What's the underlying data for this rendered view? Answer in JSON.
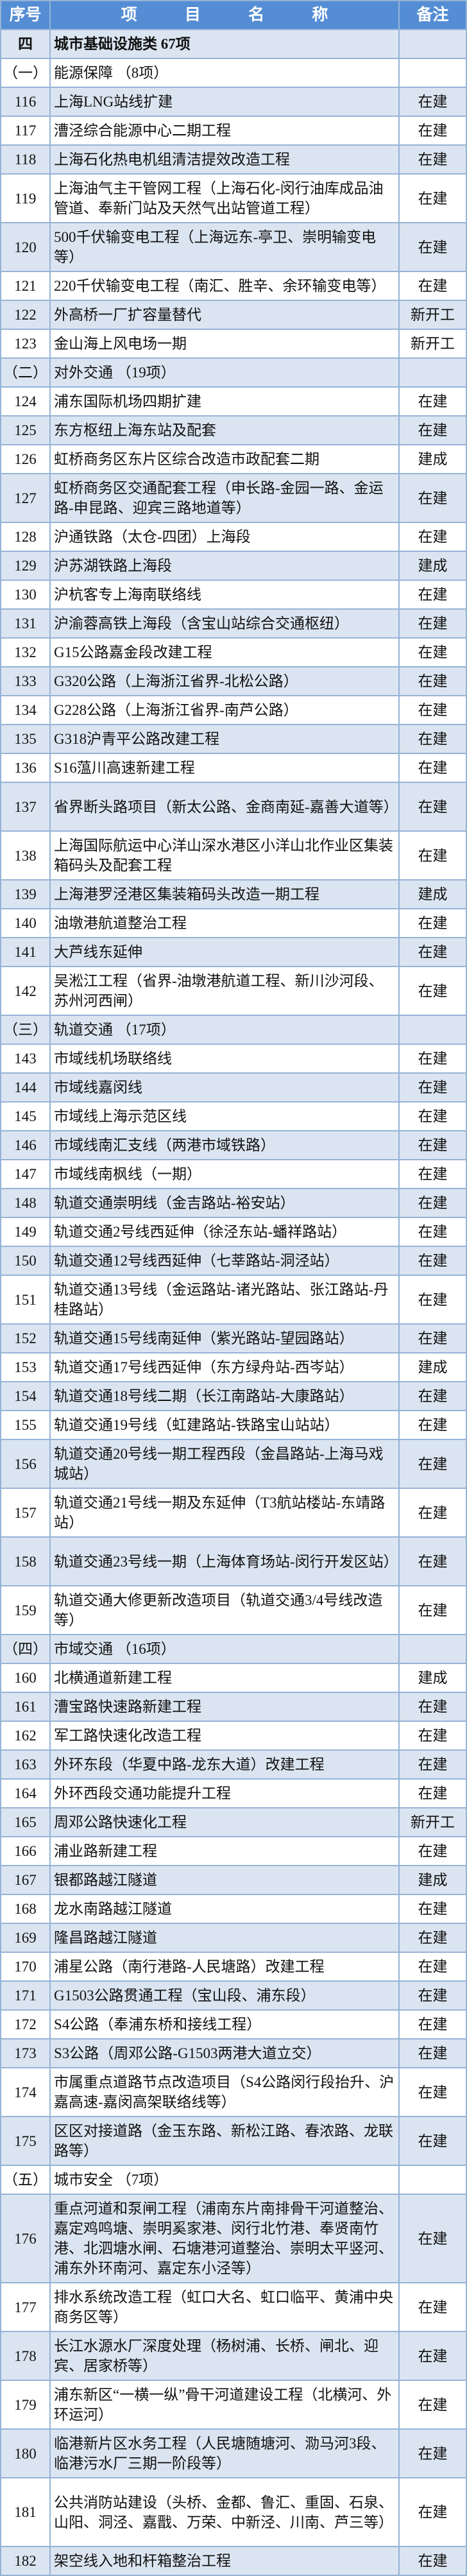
{
  "header": {
    "num": "序号",
    "name": "项 目 名 称",
    "note": "备注"
  },
  "colors": {
    "header_bg": "#548dd4",
    "row_light": "#dbe5f1",
    "border": "#95b3d7"
  },
  "rows": [
    {
      "type": "category",
      "num": "四",
      "name": "城市基础设施类  67项",
      "note": ""
    },
    {
      "type": "section",
      "num": "（一）",
      "name": "能源保障 （8项）",
      "note": ""
    },
    {
      "type": "item",
      "num": "116",
      "name": "上海LNG站线扩建",
      "note": "在建"
    },
    {
      "type": "item",
      "num": "117",
      "name": "漕泾综合能源中心二期工程",
      "note": "在建"
    },
    {
      "type": "item",
      "num": "118",
      "name": "上海石化热电机组清洁提效改造工程",
      "note": "在建"
    },
    {
      "type": "item",
      "num": "119",
      "name": "上海油气主干管网工程（上海石化-闵行油库成品油管道、奉新门站及天然气出站管道工程）",
      "note": "在建",
      "lines": 2
    },
    {
      "type": "item",
      "num": "120",
      "name": "500千伏输变电工程（上海远东-亭卫、崇明输变电等）",
      "note": "在建",
      "lines": 2
    },
    {
      "type": "item",
      "num": "121",
      "name": "220千伏输变电工程（南汇、胜辛、余环输变电等）",
      "note": "在建"
    },
    {
      "type": "item",
      "num": "122",
      "name": "外高桥一厂扩容量替代",
      "note": "新开工"
    },
    {
      "type": "item",
      "num": "123",
      "name": "金山海上风电场一期",
      "note": "新开工"
    },
    {
      "type": "section",
      "num": "（二）",
      "name": "对外交通 （19项）",
      "note": ""
    },
    {
      "type": "item",
      "num": "124",
      "name": "浦东国际机场四期扩建",
      "note": "在建"
    },
    {
      "type": "item",
      "num": "125",
      "name": "东方枢纽上海东站及配套",
      "note": "在建"
    },
    {
      "type": "item",
      "num": "126",
      "name": "虹桥商务区东片区综合改造市政配套二期",
      "note": "建成"
    },
    {
      "type": "item",
      "num": "127",
      "name": "虹桥商务区交通配套工程（申长路-金园一路、金运路-申昆路、迎宾三路地道等）",
      "note": "在建",
      "lines": 2
    },
    {
      "type": "item",
      "num": "128",
      "name": "沪通铁路（太仓-四团）上海段",
      "note": "在建"
    },
    {
      "type": "item",
      "num": "129",
      "name": "沪苏湖铁路上海段",
      "note": "建成"
    },
    {
      "type": "item",
      "num": "130",
      "name": "沪杭客专上海南联络线",
      "note": "在建"
    },
    {
      "type": "item",
      "num": "131",
      "name": "沪渝蓉高铁上海段（含宝山站综合交通枢纽）",
      "note": "在建"
    },
    {
      "type": "item",
      "num": "132",
      "name": "G15公路嘉金段改建工程",
      "note": "在建"
    },
    {
      "type": "item",
      "num": "133",
      "name": "G320公路（上海浙江省界-北松公路）",
      "note": "在建"
    },
    {
      "type": "item",
      "num": "134",
      "name": "G228公路（上海浙江省界-南芦公路）",
      "note": "在建"
    },
    {
      "type": "item",
      "num": "135",
      "name": "G318沪青平公路改建工程",
      "note": "在建"
    },
    {
      "type": "item",
      "num": "136",
      "name": "S16蕰川高速新建工程",
      "note": "在建"
    },
    {
      "type": "item",
      "num": "137",
      "name": "省界断头路项目（新太公路、金商南延-嘉善大道等）",
      "note": "在建",
      "lines": 2
    },
    {
      "type": "item",
      "num": "138",
      "name": "上海国际航运中心洋山深水港区小洋山北作业区集装箱码头及配套工程",
      "note": "在建",
      "lines": 2
    },
    {
      "type": "item",
      "num": "139",
      "name": "上海港罗泾港区集装箱码头改造一期工程",
      "note": "建成"
    },
    {
      "type": "item",
      "num": "140",
      "name": "油墩港航道整治工程",
      "note": "在建"
    },
    {
      "type": "item",
      "num": "141",
      "name": "大芦线东延伸",
      "note": "在建"
    },
    {
      "type": "item",
      "num": "142",
      "name": "吴淞江工程（省界-油墩港航道工程、新川沙河段、苏州河西闸）",
      "note": "在建",
      "lines": 2
    },
    {
      "type": "section",
      "num": "（三）",
      "name": "轨道交通 （17项）",
      "note": ""
    },
    {
      "type": "item",
      "num": "143",
      "name": "市域线机场联络线",
      "note": "在建"
    },
    {
      "type": "item",
      "num": "144",
      "name": "市域线嘉闵线",
      "note": "在建"
    },
    {
      "type": "item",
      "num": "145",
      "name": "市域线上海示范区线",
      "note": "在建"
    },
    {
      "type": "item",
      "num": "146",
      "name": "市域线南汇支线（两港市域铁路）",
      "note": "在建"
    },
    {
      "type": "item",
      "num": "147",
      "name": "市域线南枫线（一期）",
      "note": "在建"
    },
    {
      "type": "item",
      "num": "148",
      "name": "轨道交通崇明线（金吉路站-裕安站）",
      "note": "在建"
    },
    {
      "type": "item",
      "num": "149",
      "name": "轨道交通2号线西延伸（徐泾东站-蟠祥路站）",
      "note": "在建"
    },
    {
      "type": "item",
      "num": "150",
      "name": "轨道交通12号线西延伸（七莘路站-洞泾站）",
      "note": "在建"
    },
    {
      "type": "item",
      "num": "151",
      "name": "轨道交通13号线（金运路站-诸光路站、张江路站-丹桂路站）",
      "note": "在建",
      "lines": 2
    },
    {
      "type": "item",
      "num": "152",
      "name": "轨道交通15号线南延伸（紫光路站-望园路站）",
      "note": "在建"
    },
    {
      "type": "item",
      "num": "153",
      "name": "轨道交通17号线西延伸（东方绿舟站-西岑站）",
      "note": "建成"
    },
    {
      "type": "item",
      "num": "154",
      "name": "轨道交通18号线二期（长江南路站-大康路站）",
      "note": "在建"
    },
    {
      "type": "item",
      "num": "155",
      "name": "轨道交通19号线（虹建路站-铁路宝山站站）",
      "note": "在建"
    },
    {
      "type": "item",
      "num": "156",
      "name": "轨道交通20号线一期工程西段（金昌路站-上海马戏城站）",
      "note": "在建",
      "lines": 2
    },
    {
      "type": "item",
      "num": "157",
      "name": "轨道交通21号线一期及东延伸（T3航站楼站-东靖路站）",
      "note": "在建",
      "lines": 2
    },
    {
      "type": "item",
      "num": "158",
      "name": "轨道交通23号线一期（上海体育场站-闵行开发区站）",
      "note": "在建",
      "lines": 2
    },
    {
      "type": "item",
      "num": "159",
      "name": "轨道交通大修更新改造项目（轨道交通3/4号线改造等）",
      "note": "在建",
      "lines": 2
    },
    {
      "type": "section",
      "num": "（四）",
      "name": "市域交通 （16项）",
      "note": ""
    },
    {
      "type": "item",
      "num": "160",
      "name": "北横通道新建工程",
      "note": "建成"
    },
    {
      "type": "item",
      "num": "161",
      "name": "漕宝路快速路新建工程",
      "note": "在建"
    },
    {
      "type": "item",
      "num": "162",
      "name": "军工路快速化改造工程",
      "note": "在建"
    },
    {
      "type": "item",
      "num": "163",
      "name": "外环东段（华夏中路-龙东大道）改建工程",
      "note": "在建"
    },
    {
      "type": "item",
      "num": "164",
      "name": "外环西段交通功能提升工程",
      "note": "在建"
    },
    {
      "type": "item",
      "num": "165",
      "name": "周邓公路快速化工程",
      "note": "新开工"
    },
    {
      "type": "item",
      "num": "166",
      "name": "浦业路新建工程",
      "note": "在建"
    },
    {
      "type": "item",
      "num": "167",
      "name": "银都路越江隧道",
      "note": "建成"
    },
    {
      "type": "item",
      "num": "168",
      "name": "龙水南路越江隧道",
      "note": "在建"
    },
    {
      "type": "item",
      "num": "169",
      "name": "隆昌路越江隧道",
      "note": "在建"
    },
    {
      "type": "item",
      "num": "170",
      "name": "浦星公路（南行港路-人民塘路）改建工程",
      "note": "在建"
    },
    {
      "type": "item",
      "num": "171",
      "name": "G1503公路贯通工程（宝山段、浦东段）",
      "note": "在建"
    },
    {
      "type": "item",
      "num": "172",
      "name": "S4公路（奉浦东桥和接线工程）",
      "note": "在建"
    },
    {
      "type": "item",
      "num": "173",
      "name": "S3公路（周邓公路-G1503两港大道立交）",
      "note": "在建"
    },
    {
      "type": "item",
      "num": "174",
      "name": "市属重点道路节点改造项目（S4公路闵行段抬升、沪嘉高速-嘉闵高架联络线等）",
      "note": "在建",
      "lines": 2
    },
    {
      "type": "item",
      "num": "175",
      "name": "区区对接道路（金玉东路、新松江路、春浓路、龙联路等）",
      "note": "在建",
      "lines": 2
    },
    {
      "type": "section",
      "num": "（五）",
      "name": "城市安全 （7项）",
      "note": ""
    },
    {
      "type": "item",
      "num": "176",
      "name": "重点河道和泵闸工程（浦南东片南排骨干河道整治、嘉定鸡鸣塘、崇明奚家港、闵行北竹港、奉贤南竹港、北泗塘水闸、石塘港河道整治、崇明太平竖河、浦东外环南河、嘉定东小泾等）",
      "note": "在建",
      "lines": 4
    },
    {
      "type": "item",
      "num": "177",
      "name": "排水系统改造工程（虹口大名、虹口临平、黄浦中央商务区等）",
      "note": "在建",
      "lines": 2
    },
    {
      "type": "item",
      "num": "178",
      "name": "长江水源水厂深度处理（杨树浦、长桥、闸北、迎宾、居家桥等）",
      "note": "在建",
      "lines": 2
    },
    {
      "type": "item",
      "num": "179",
      "name": "浦东新区“一横一纵”骨干河道建设工程（北横河、外环运河）",
      "note": "在建",
      "lines": 2
    },
    {
      "type": "item",
      "num": "180",
      "name": "临港新片区水务工程（人民塘随塘河、泐马河3段、临港污水厂三期一阶段等）",
      "note": "在建",
      "lines": 2
    },
    {
      "type": "item",
      "num": "181",
      "name": "公共消防站建设（头桥、金都、鲁汇、重固、石泉、山阳、洞泾、嘉戬、万荣、中新泾、川南、芦三等）",
      "note": "在建",
      "lines": 3
    },
    {
      "type": "item",
      "num": "182",
      "name": "架空线入地和杆箱整治工程",
      "note": "在建"
    }
  ]
}
